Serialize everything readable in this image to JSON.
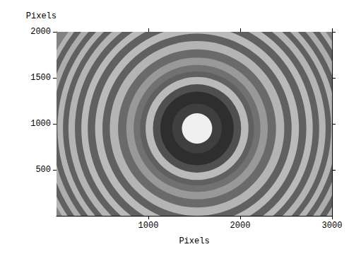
{
  "chart_data": {
    "type": "rings",
    "x_label": "Pixels",
    "y_label": "Pixels",
    "xlim": [
      0,
      3000
    ],
    "ylim": [
      0,
      2000
    ],
    "xticks": [
      1000,
      2000,
      3000
    ],
    "yticks": [
      500,
      1000,
      1500,
      2000
    ],
    "grid": false,
    "center": [
      1530,
      950
    ],
    "radii": [
      2000,
      1750,
      1700,
      1640,
      1580,
      1520,
      1460,
      1400,
      1330,
      1260,
      1190,
      1110,
      1030,
      950,
      860,
      770,
      690,
      620,
      560,
      480,
      400,
      270,
      165
    ],
    "levels": [
      55,
      70,
      45,
      68,
      45,
      70,
      45,
      70,
      45,
      72,
      45,
      72,
      45,
      70,
      48,
      62,
      50,
      45,
      72,
      40,
      30,
      35,
      88
    ]
  }
}
